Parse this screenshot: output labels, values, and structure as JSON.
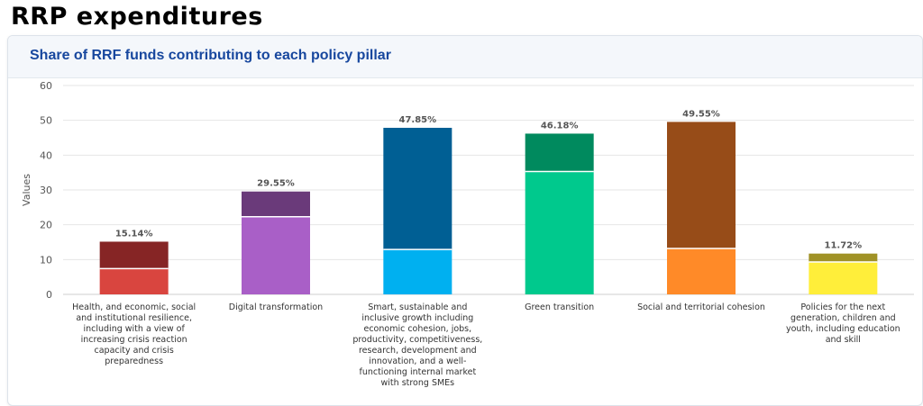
{
  "page": {
    "title": "RRP expenditures"
  },
  "card": {
    "title": "Share of RRF funds contributing to each policy pillar"
  },
  "chart_data": {
    "type": "bar",
    "stacked": true,
    "title": "Share of RRF funds contributing to each policy pillar",
    "ylabel": "Values",
    "ylim": [
      0,
      60
    ],
    "yticks": [
      0,
      10,
      20,
      30,
      40,
      50,
      60
    ],
    "grid": true,
    "categories": [
      [
        "Health, and economic, social",
        "and institutional resilience,",
        "including with a view of",
        "increasing crisis reaction",
        "capacity and crisis",
        "preparedness"
      ],
      [
        "Digital transformation"
      ],
      [
        "Smart, sustainable and",
        "inclusive growth including",
        "economic cohesion, jobs,",
        "productivity, competitiveness,",
        "research, development and",
        "innovation, and a well-",
        "functioning internal market",
        "with strong SMEs"
      ],
      [
        "Green transition"
      ],
      [
        "Social and territorial cohesion"
      ],
      [
        "Policies for the next",
        "generation, children and",
        "youth, including education",
        "and skill"
      ]
    ],
    "lower_values": [
      7.4,
      22.3,
      12.9,
      35.3,
      13.2,
      9.3
    ],
    "upper_values": [
      7.74,
      7.25,
      34.95,
      10.88,
      36.35,
      2.42
    ],
    "totals": [
      15.14,
      29.55,
      47.85,
      46.18,
      49.55,
      11.72
    ],
    "total_labels": [
      "15.14%",
      "29.55%",
      "47.85%",
      "46.18%",
      "49.55%",
      "11.72%"
    ],
    "lower_colors": [
      "#d9453f",
      "#a95fc7",
      "#00b0f0",
      "#00c98d",
      "#ff8a28",
      "#ffee3a"
    ],
    "upper_colors": [
      "#862525",
      "#6a3a7a",
      "#005f94",
      "#008a5e",
      "#974c18",
      "#a09226"
    ]
  }
}
